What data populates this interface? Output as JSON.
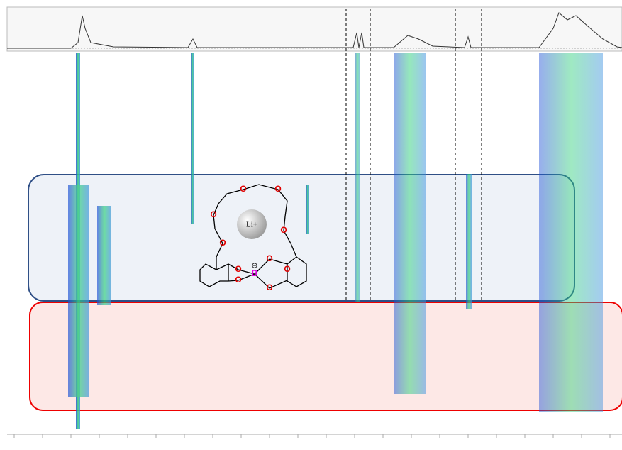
{
  "structure": {
    "ion": "Li+",
    "atoms": [
      "O",
      "O",
      "O",
      "O",
      "O",
      "O",
      "O",
      "O",
      "O",
      "O",
      "B"
    ],
    "charge": "⊖"
  }
}
